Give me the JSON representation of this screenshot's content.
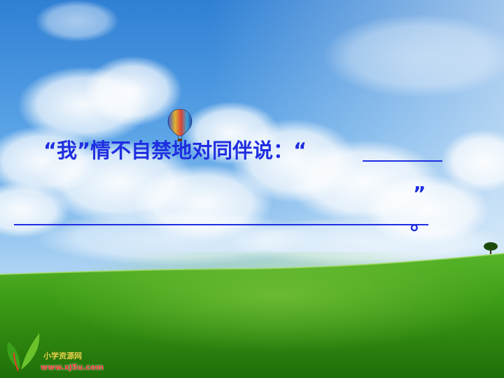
{
  "slide": {
    "prompt": "“我”情不自禁地对同伴说：“",
    "close_quote": "”",
    "period": "。"
  },
  "logo": {
    "title": "小学资源网",
    "url": "www.xj5u.com"
  },
  "colors": {
    "text": "#1f2ee0",
    "sky_top": "#2d7fd6",
    "grass": "#3f9a12"
  },
  "icons": [
    "hot-air-balloon-icon",
    "tree-icon",
    "logo-leaf-icon"
  ]
}
